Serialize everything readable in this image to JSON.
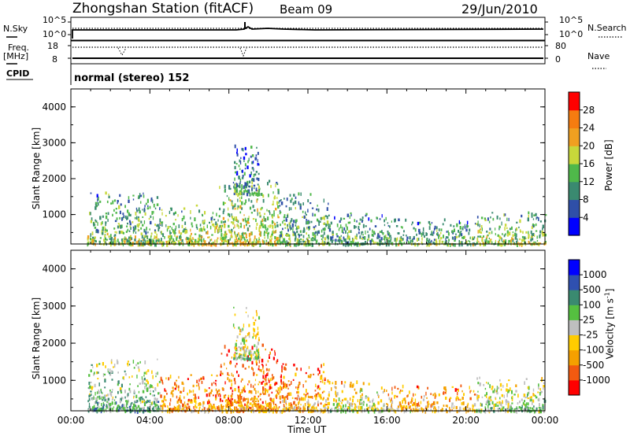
{
  "header": {
    "title": "Zhongshan Station (fitACF)",
    "beam": "Beam 09",
    "date": "29/Jun/2010"
  },
  "strip_labels": {
    "nsky": "N.Sky",
    "nsky_ticks": [
      "10^5",
      "10^0"
    ],
    "nsearch": "N.Search",
    "nsearch_ticks": [
      "10^5",
      "10^0"
    ],
    "freq": "Freq.",
    "freq_unit": "[MHz]",
    "freq_ticks": [
      "18",
      "8"
    ],
    "nave": "Nave",
    "nave_ticks": [
      "80",
      "0"
    ],
    "cpid": "CPID",
    "mode": "normal (stereo) 152"
  },
  "chart_data": [
    {
      "type": "heatmap",
      "name": "power-panel",
      "ylabel": "Slant Range [km]",
      "yticks": [
        "4000",
        "3000",
        "2000",
        "1000"
      ],
      "ylim": [
        180,
        4500
      ],
      "xlim": [
        0,
        24
      ],
      "colorbar_label": "Power [dB]",
      "colorbar_ticks": [
        "28",
        "24",
        "20",
        "16",
        "12",
        "8",
        "4"
      ],
      "colors": [
        "#0000ff",
        "#2f4fa8",
        "#3a8a70",
        "#4fb84a",
        "#c8d83a",
        "#f0a020",
        "#f57c10",
        "#ff0000"
      ],
      "regions": [
        {
          "t": [
            0.8,
            4.5
          ],
          "r": [
            200,
            1650
          ],
          "level": 3.6
        },
        {
          "t": [
            4.5,
            7.5
          ],
          "r": [
            200,
            1300
          ],
          "level": 4.2
        },
        {
          "t": [
            7.5,
            10.5
          ],
          "r": [
            200,
            2000
          ],
          "level": 4.4
        },
        {
          "t": [
            8.2,
            9.5
          ],
          "r": [
            1600,
            3000
          ],
          "level": 2.6
        },
        {
          "t": [
            10.5,
            13.0
          ],
          "r": [
            200,
            1650
          ],
          "level": 3.4
        },
        {
          "t": [
            13.0,
            16.0
          ],
          "r": [
            200,
            1100
          ],
          "level": 3.0
        },
        {
          "t": [
            16.0,
            20.5
          ],
          "r": [
            200,
            900
          ],
          "level": 3.2
        },
        {
          "t": [
            20.5,
            24.0
          ],
          "r": [
            200,
            1100
          ],
          "level": 4.0
        }
      ]
    },
    {
      "type": "heatmap",
      "name": "velocity-panel",
      "ylabel": "Slant Range [km]",
      "yticks": [
        "4000",
        "3000",
        "2000",
        "1000"
      ],
      "ylim": [
        180,
        4500
      ],
      "xlim": [
        0,
        24
      ],
      "xticks": [
        "00:00",
        "04:00",
        "08:00",
        "12:00",
        "16:00",
        "20:00",
        "00:00"
      ],
      "xlabel": "Time UT",
      "colorbar_label": "Velocity [m s",
      "colorbar_label_sup": "-1",
      "colorbar_label_end": "]",
      "colorbar_ticks": [
        "1000",
        "500",
        "100",
        "25",
        "-25",
        "-100",
        "-500",
        "-1000"
      ],
      "colors": [
        "#ff0000",
        "#f25a10",
        "#f5a000",
        "#ffcc00",
        "#bfbfbf",
        "#55c040",
        "#3a8a70",
        "#2f50b0",
        "#0000ff"
      ],
      "regions": [
        {
          "t": [
            0.8,
            4.5
          ],
          "r": [
            200,
            1600
          ],
          "level": 5.6
        },
        {
          "t": [
            4.5,
            7.5
          ],
          "r": [
            200,
            1200
          ],
          "level": 2.6
        },
        {
          "t": [
            7.5,
            10.5
          ],
          "r": [
            200,
            2000
          ],
          "level": 2.4
        },
        {
          "t": [
            8.2,
            9.5
          ],
          "r": [
            1600,
            3000
          ],
          "level": 4.6
        },
        {
          "t": [
            10.5,
            13.0
          ],
          "r": [
            200,
            1500
          ],
          "level": 3.0
        },
        {
          "t": [
            13.0,
            16.0
          ],
          "r": [
            200,
            1000
          ],
          "level": 4.4
        },
        {
          "t": [
            16.0,
            20.5
          ],
          "r": [
            200,
            900
          ],
          "level": 3.2
        },
        {
          "t": [
            20.5,
            24.0
          ],
          "r": [
            200,
            1100
          ],
          "level": 5.0
        }
      ]
    }
  ]
}
